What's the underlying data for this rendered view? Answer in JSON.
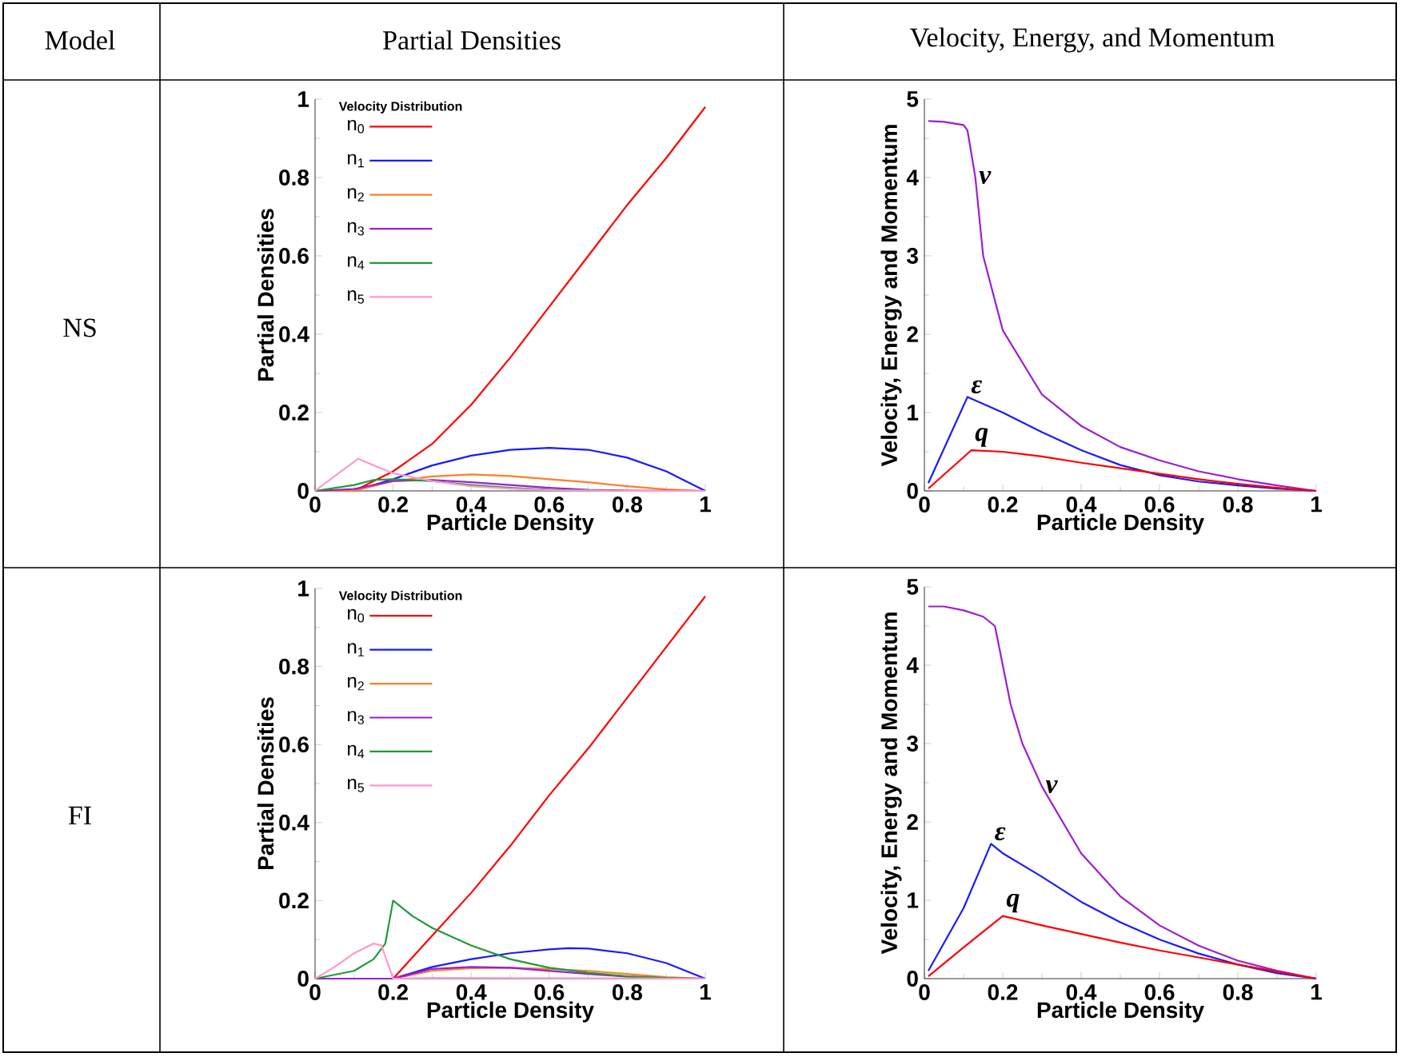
{
  "chart_data": [
    {
      "type": "line",
      "title": "Partial Densities",
      "xlabel": "Particle Density",
      "ylabel": "Partial Densities",
      "xlim": [
        0,
        1
      ],
      "ylim": [
        0,
        1
      ],
      "xticks": [
        0,
        0.2,
        0.4,
        0.6,
        0.8,
        1
      ],
      "yticks": [
        0,
        0.2,
        0.4,
        0.6,
        0.8,
        1
      ],
      "legend": "top left",
      "legend_title": "Velocity Distribution",
      "series": [
        {
          "name": "n$_{0}$",
          "color": "#ff0000",
          "x": [
            0,
            0.1,
            0.2,
            0.3,
            0.4,
            0.5,
            0.6,
            0.7,
            0.8,
            0.9,
            1
          ],
          "values": [
            0,
            0,
            0.05,
            0.12,
            0.22,
            0.34,
            0.47,
            0.6,
            0.73,
            0.85,
            0.98
          ]
        },
        {
          "name": "n$_{1}$",
          "color": "#1a1aff",
          "x": [
            0,
            0.1,
            0.2,
            0.3,
            0.4,
            0.5,
            0.6,
            0.7,
            0.8,
            0.9,
            1
          ],
          "values": [
            0,
            0,
            0.03,
            0.065,
            0.09,
            0.105,
            0.11,
            0.105,
            0.085,
            0.05,
            0
          ]
        },
        {
          "name": "n$_{2}$",
          "color": "#ff7f27",
          "x": [
            0,
            0.1,
            0.2,
            0.3,
            0.4,
            0.5,
            0.6,
            0.7,
            0.8,
            0.9,
            1
          ],
          "values": [
            0,
            0,
            0.025,
            0.037,
            0.042,
            0.038,
            0.03,
            0.022,
            0.012,
            0.004,
            0
          ]
        },
        {
          "name": "n$_{3}$",
          "color": "#9b1fd0",
          "x": [
            0,
            0.1,
            0.2,
            0.3,
            0.4,
            0.5,
            0.6,
            0.7,
            0.8,
            1
          ],
          "values": [
            0,
            0.005,
            0.025,
            0.028,
            0.022,
            0.015,
            0.008,
            0.003,
            0.001,
            0
          ]
        },
        {
          "name": "n$_{4}$",
          "color": "#1f9a3a",
          "x": [
            0,
            0.1,
            0.15,
            0.2,
            0.3,
            0.4,
            0.5,
            0.6,
            0.8,
            1
          ],
          "values": [
            0,
            0.015,
            0.028,
            0.03,
            0.025,
            0.015,
            0.008,
            0.003,
            0,
            0
          ]
        },
        {
          "name": "n$_{5}$",
          "color": "#ff99cc",
          "x": [
            0,
            0.11,
            0.2,
            0.3,
            0.4,
            0.5,
            0.6,
            0.8,
            1
          ],
          "values": [
            0,
            0.082,
            0.045,
            0.025,
            0.012,
            0.006,
            0.002,
            0,
            0
          ]
        }
      ]
    },
    {
      "type": "line",
      "title": "Velocity, Energy, and Momentum",
      "xlabel": "Particle Density",
      "ylabel": "Velocity, Energy and Momentum",
      "xlim": [
        0,
        1
      ],
      "ylim": [
        0,
        5
      ],
      "xticks": [
        0,
        0.2,
        0.4,
        0.6,
        0.8,
        1
      ],
      "yticks": [
        0,
        1,
        2,
        3,
        4,
        5
      ],
      "series": [
        {
          "name": "v",
          "color": "#9b1fd0",
          "x": [
            0.01,
            0.05,
            0.1,
            0.11,
            0.13,
            0.15,
            0.2,
            0.3,
            0.4,
            0.5,
            0.6,
            0.7,
            0.8,
            0.9,
            1
          ],
          "values": [
            4.72,
            4.71,
            4.67,
            4.6,
            4.0,
            3.0,
            2.05,
            1.23,
            0.83,
            0.56,
            0.39,
            0.25,
            0.15,
            0.07,
            0
          ]
        },
        {
          "name": "ε",
          "color": "#1a1aff",
          "x": [
            0.01,
            0.11,
            0.2,
            0.3,
            0.4,
            0.5,
            0.6,
            0.7,
            0.8,
            0.9,
            1
          ],
          "values": [
            0.1,
            1.2,
            1.0,
            0.75,
            0.52,
            0.33,
            0.2,
            0.12,
            0.07,
            0.03,
            0
          ]
        },
        {
          "name": "q",
          "color": "#ff0000",
          "x": [
            0.01,
            0.12,
            0.2,
            0.3,
            0.4,
            0.5,
            0.6,
            0.7,
            0.8,
            0.9,
            1
          ],
          "values": [
            0.03,
            0.52,
            0.5,
            0.44,
            0.36,
            0.29,
            0.22,
            0.15,
            0.09,
            0.04,
            0
          ]
        }
      ]
    },
    {
      "type": "line",
      "xlabel": "Particle Density",
      "ylabel": "Partial Densities",
      "xlim": [
        0,
        1
      ],
      "ylim": [
        0,
        1
      ],
      "xticks": [
        0,
        0.2,
        0.4,
        0.6,
        0.8,
        1
      ],
      "yticks": [
        0,
        0.2,
        0.4,
        0.6,
        0.8,
        1
      ],
      "legend": "top left",
      "legend_title": "Velocity Distribution",
      "series": [
        {
          "name": "n$_{0}$",
          "color": "#ff0000",
          "x": [
            0,
            0.2,
            0.3,
            0.4,
            0.5,
            0.6,
            0.7,
            0.8,
            0.9,
            1
          ],
          "values": [
            0,
            0,
            0.11,
            0.22,
            0.34,
            0.47,
            0.59,
            0.72,
            0.85,
            0.98
          ]
        },
        {
          "name": "n$_{1}$",
          "color": "#1a1aff",
          "x": [
            0,
            0.2,
            0.3,
            0.4,
            0.5,
            0.6,
            0.65,
            0.7,
            0.8,
            0.9,
            1
          ],
          "values": [
            0,
            0,
            0.03,
            0.05,
            0.065,
            0.075,
            0.078,
            0.077,
            0.065,
            0.04,
            0
          ]
        },
        {
          "name": "n$_{2}$",
          "color": "#ff7f27",
          "x": [
            0,
            0.2,
            0.3,
            0.4,
            0.5,
            0.6,
            0.7,
            0.8,
            0.9,
            1
          ],
          "values": [
            0,
            0,
            0.02,
            0.027,
            0.028,
            0.025,
            0.02,
            0.012,
            0.004,
            0
          ]
        },
        {
          "name": "n$_{3}$",
          "color": "#9b1fd0",
          "x": [
            0,
            0.2,
            0.3,
            0.4,
            0.5,
            0.6,
            0.7,
            0.8,
            0.9,
            1
          ],
          "values": [
            0,
            0,
            0.025,
            0.03,
            0.028,
            0.02,
            0.012,
            0.005,
            0.001,
            0
          ]
        },
        {
          "name": "n$_{4}$",
          "color": "#1f9a3a",
          "x": [
            0,
            0.1,
            0.15,
            0.18,
            0.2,
            0.25,
            0.3,
            0.4,
            0.5,
            0.6,
            0.7,
            0.8,
            0.9,
            1
          ],
          "values": [
            0,
            0.02,
            0.05,
            0.09,
            0.2,
            0.16,
            0.13,
            0.085,
            0.05,
            0.028,
            0.015,
            0.006,
            0.002,
            0
          ]
        },
        {
          "name": "n$_{5}$",
          "color": "#ff99cc",
          "x": [
            0,
            0.05,
            0.1,
            0.15,
            0.17,
            0.2,
            0.3,
            1
          ],
          "values": [
            0,
            0.03,
            0.065,
            0.09,
            0.085,
            0,
            0.002,
            0
          ]
        }
      ]
    },
    {
      "type": "line",
      "xlabel": "Particle Density",
      "ylabel": "Velocity, Energy and Momentum",
      "xlim": [
        0,
        1
      ],
      "ylim": [
        0,
        5
      ],
      "xticks": [
        0,
        0.2,
        0.4,
        0.6,
        0.8,
        1
      ],
      "yticks": [
        0,
        1,
        2,
        3,
        4,
        5
      ],
      "series": [
        {
          "name": "v",
          "color": "#9b1fd0",
          "x": [
            0.01,
            0.05,
            0.1,
            0.15,
            0.18,
            0.2,
            0.22,
            0.25,
            0.3,
            0.4,
            0.5,
            0.6,
            0.7,
            0.8,
            0.9,
            1
          ],
          "values": [
            4.75,
            4.75,
            4.7,
            4.62,
            4.5,
            4.0,
            3.5,
            3.0,
            2.45,
            1.6,
            1.05,
            0.68,
            0.42,
            0.23,
            0.1,
            0
          ]
        },
        {
          "name": "ε",
          "color": "#1a1aff",
          "x": [
            0.01,
            0.1,
            0.17,
            0.2,
            0.3,
            0.4,
            0.5,
            0.6,
            0.7,
            0.8,
            0.9,
            1
          ],
          "values": [
            0.1,
            0.9,
            1.72,
            1.6,
            1.3,
            0.98,
            0.72,
            0.5,
            0.32,
            0.18,
            0.07,
            0
          ]
        },
        {
          "name": "q",
          "color": "#ff0000",
          "x": [
            0.01,
            0.1,
            0.2,
            0.3,
            0.4,
            0.5,
            0.6,
            0.7,
            0.8,
            0.9,
            1
          ],
          "values": [
            0.03,
            0.4,
            0.8,
            0.68,
            0.57,
            0.46,
            0.36,
            0.27,
            0.18,
            0.09,
            0
          ]
        }
      ]
    },
    {
      "type": "other",
      "annotations": [
        "Model",
        "NS",
        "FI"
      ]
    }
  ]
}
